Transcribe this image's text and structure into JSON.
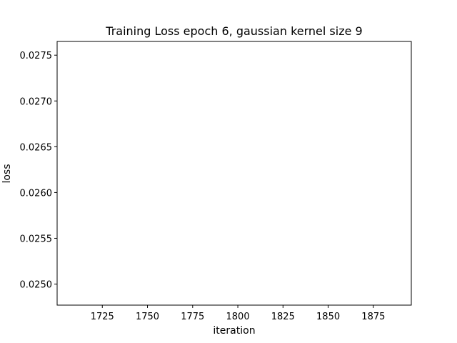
{
  "chart_data": {
    "type": "line",
    "title": "Training Loss epoch 6, gaussian kernel size 9",
    "xlabel": "iteration",
    "ylabel": "loss",
    "xlim": [
      1700,
      1896
    ],
    "ylim": [
      0.02477,
      0.02765
    ],
    "x_ticks": [
      1725,
      1750,
      1775,
      1800,
      1825,
      1850,
      1875
    ],
    "x_tick_labels": [
      "1725",
      "1750",
      "1775",
      "1800",
      "1825",
      "1850",
      "1875"
    ],
    "y_ticks": [
      0.025,
      0.0255,
      0.026,
      0.0265,
      0.027,
      0.0275
    ],
    "y_tick_labels": [
      "0.0250",
      "0.0255",
      "0.0260",
      "0.0265",
      "0.0270",
      "0.0275"
    ],
    "grid": false,
    "series": []
  }
}
